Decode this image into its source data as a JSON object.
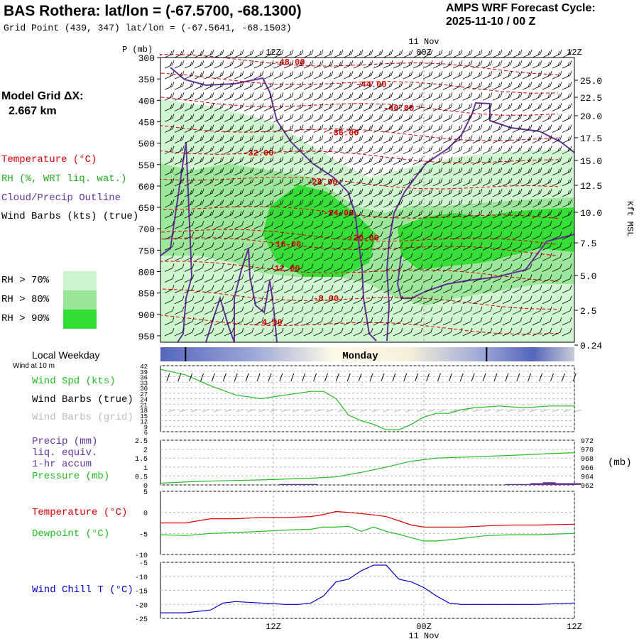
{
  "header": {
    "title": "BAS Rothera:  lat/lon = (-67.5700, -68.1300)",
    "subtitle": "Grid Point (439, 347) lat/lon = (-67.5641, -68.1503)",
    "forecast_label": "AMPS WRF Forecast Cycle:",
    "forecast_cycle": "2025-11-10 / 00  Z"
  },
  "left_panel": {
    "model_grid_label": "Model Grid ΔX:",
    "model_grid_value": "2.667 km",
    "legend": {
      "temperature": "Temperature (°C)",
      "rh": "RH (%, WRT liq. wat.)",
      "cloud": "Cloud/Precip Outline",
      "wind": "Wind Barbs (kts) (true)"
    },
    "rh_levels": [
      {
        "label": "RH > 70%",
        "color": "#ccf5cc"
      },
      {
        "label": "RH > 80%",
        "color": "#99e699"
      },
      {
        "label": "RH > 90%",
        "color": "#33dd33"
      }
    ]
  },
  "colors": {
    "temperature": "#dd0000",
    "cloud_outline": "#663399",
    "wind_speed": "#22bb22",
    "precip": "#663399",
    "pressure": "#22bb22",
    "dewpoint": "#22bb22",
    "wind_chill": "#0000cc",
    "weekday_bar": "#5566bb"
  },
  "time_axis": {
    "top_date": "11 Nov",
    "bottom_date": "11 Nov",
    "ticks": [
      "12Z",
      "00Z",
      "12Z"
    ],
    "tick_hours": [
      12,
      24,
      36
    ],
    "range_hours": [
      3,
      36
    ],
    "local_weekday_label": "Local Weekday",
    "weekday": "Monday",
    "day_marks_hours": [
      5,
      29
    ]
  },
  "chart_data": [
    {
      "type": "heatmap",
      "name": "cross-section",
      "ylabel": "P (mb)",
      "y_ticks": [
        300,
        350,
        400,
        450,
        500,
        550,
        600,
        650,
        700,
        750,
        800,
        850,
        900,
        950
      ],
      "ylim": [
        300,
        965
      ],
      "right_axis_label": "Kft MSL",
      "right_ticks": [
        "25.0",
        "22.5",
        "20.0",
        "17.5",
        "15.0",
        "12.5",
        "10.0",
        "7.5",
        "5.0",
        "2.5",
        "0.24"
      ],
      "temperature_contours": [
        {
          "label": "-48.00",
          "t": 13.3,
          "p": 310
        },
        {
          "label": "-44.00",
          "t": 19.8,
          "p": 362
        },
        {
          "label": "-40.00",
          "t": 22.0,
          "p": 418
        },
        {
          "label": "-36.00",
          "t": 17.6,
          "p": 475
        },
        {
          "label": "-32.00",
          "t": 10.8,
          "p": 522
        },
        {
          "label": "-28.00",
          "t": 15.9,
          "p": 590
        },
        {
          "label": "-24.00",
          "t": 17.2,
          "p": 662
        },
        {
          "label": "-20.00",
          "t": 19.2,
          "p": 720
        },
        {
          "label": "-16.00",
          "t": 13.0,
          "p": 735
        },
        {
          "label": "-12.00",
          "t": 12.9,
          "p": 792
        },
        {
          "label": "-8.00",
          "t": 16.2,
          "p": 862
        },
        {
          "label": "-4.00",
          "t": 11.7,
          "p": 918
        }
      ]
    },
    {
      "type": "line",
      "name": "wind",
      "labels": [
        "Wind at 10 m",
        "Wind Spd (kts)",
        "Wind Barbs (true)",
        "Wind Barbs (grid)"
      ],
      "y_ticks": [
        6,
        9,
        12,
        15,
        18,
        21,
        24,
        27,
        30,
        33,
        36,
        39,
        42
      ],
      "ylim": [
        6,
        42
      ],
      "series": [
        {
          "name": "Wind Spd (kts)",
          "x": [
            3,
            5,
            7,
            9,
            11,
            13,
            15,
            16,
            17,
            18,
            19,
            20,
            21,
            22,
            23,
            24,
            25,
            26,
            27,
            28,
            30,
            32,
            34,
            36
          ],
          "y": [
            40,
            37,
            31,
            26,
            24,
            26,
            28,
            28,
            24,
            15,
            12,
            10,
            7,
            7,
            10,
            14,
            16,
            16,
            18,
            19,
            20,
            19,
            20,
            20
          ]
        }
      ]
    },
    {
      "type": "line",
      "name": "precip-pressure",
      "labels": [
        "Precip (mm)",
        "liq. equiv.",
        "1-hr accum",
        "Pressure (mb)"
      ],
      "y_ticks": [
        0.0,
        0.5,
        1.0,
        1.5,
        2.0,
        2.5
      ],
      "ylim": [
        0,
        2.5
      ],
      "right_ticks": [
        962,
        964,
        966,
        968,
        970,
        972
      ],
      "right_lim": [
        962,
        972
      ],
      "right_unit": "(mb)",
      "series": [
        {
          "name": "Pressure (mb)",
          "x": [
            3,
            6,
            9,
            12,
            15,
            17,
            19,
            21,
            23,
            25,
            28,
            31,
            34,
            36
          ],
          "y": [
            962.4,
            962.8,
            963.0,
            963.2,
            963.5,
            963.8,
            964.8,
            966.0,
            967.3,
            968.0,
            968.3,
            968.6,
            969.0,
            969.2
          ]
        },
        {
          "name": "Precip (mm)",
          "x": [
            13,
            14,
            15,
            31,
            32,
            33,
            34,
            35,
            36
          ],
          "y": [
            0.05,
            0.05,
            0.05,
            0.05,
            0.05,
            0.1,
            0.15,
            0.1,
            0.1
          ]
        }
      ]
    },
    {
      "type": "line",
      "name": "temperature-dewpoint",
      "labels": [
        "Temperature (°C)",
        "Dewpoint (°C)"
      ],
      "y_ticks": [
        -10,
        -5,
        0,
        5
      ],
      "ylim": [
        -10,
        5
      ],
      "series": [
        {
          "name": "Temperature (°C)",
          "x": [
            3,
            5,
            7,
            9,
            11,
            13,
            15,
            16,
            17,
            18,
            19,
            20,
            21,
            22,
            23,
            24,
            25,
            27,
            29,
            31,
            33,
            36
          ],
          "y": [
            -2.5,
            -2.5,
            -1.5,
            -1.5,
            -1.2,
            -1.2,
            -1.0,
            -0.5,
            0.2,
            0.0,
            -0.3,
            -0.6,
            -1.0,
            -2.0,
            -3.0,
            -3.5,
            -3.5,
            -3.5,
            -3.2,
            -3.0,
            -3.0,
            -2.8
          ]
        },
        {
          "name": "Dewpoint (°C)",
          "x": [
            3,
            5,
            7,
            9,
            11,
            13,
            15,
            16,
            17,
            18,
            19,
            20,
            21,
            22,
            23,
            24,
            25,
            27,
            29,
            31,
            33,
            36
          ],
          "y": [
            -5.3,
            -5.5,
            -5.0,
            -4.8,
            -4.5,
            -4.2,
            -4.0,
            -3.5,
            -3.5,
            -3.3,
            -4.5,
            -3.5,
            -4.5,
            -5.2,
            -6.0,
            -6.8,
            -6.8,
            -6.2,
            -5.5,
            -5.3,
            -5.3,
            -5.0
          ]
        }
      ]
    },
    {
      "type": "line",
      "name": "wind-chill",
      "labels": [
        "Wind Chill T (°C)"
      ],
      "y_ticks": [
        -25,
        -20,
        -15,
        -10,
        -5
      ],
      "ylim": [
        -25,
        -5
      ],
      "series": [
        {
          "name": "Wind Chill T (°C)",
          "x": [
            3,
            5,
            7,
            8,
            9,
            11,
            13,
            14,
            15,
            16,
            17,
            18,
            19,
            20,
            21,
            22,
            23,
            24,
            25,
            26,
            27,
            29,
            31,
            33,
            36
          ],
          "y": [
            -23,
            -23,
            -22,
            -19.5,
            -19,
            -19.5,
            -20,
            -20,
            -19.5,
            -17,
            -12,
            -11,
            -8,
            -6,
            -6,
            -11,
            -12,
            -14,
            -17,
            -19.5,
            -20,
            -20,
            -20,
            -20,
            -19.5
          ]
        }
      ]
    }
  ]
}
